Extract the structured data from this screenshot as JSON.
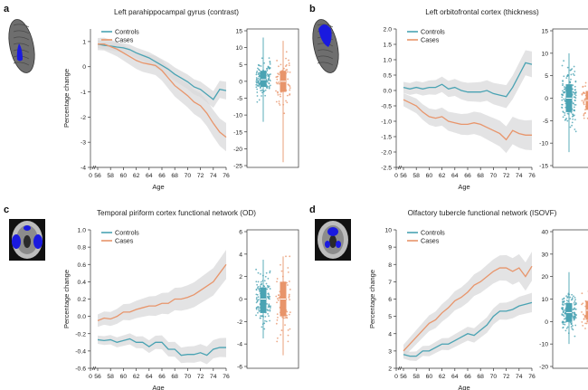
{
  "colors": {
    "controls": "#4aa3b3",
    "cases": "#e8956b",
    "band": "#d9dadb",
    "brain_highlight": "#1a1adf"
  },
  "chart_data": [
    {
      "type": "line",
      "panel": "a",
      "title": "Left parahippocampal gyrus (contrast)",
      "xlabel": "Age",
      "ylabel": "Percentage change",
      "x": [
        56,
        57,
        58,
        59,
        60,
        61,
        62,
        63,
        64,
        65,
        66,
        67,
        68,
        69,
        70,
        71,
        72,
        73,
        74,
        75,
        76
      ],
      "xticks": [
        "0",
        "56",
        "58",
        "60",
        "62",
        "64",
        "66",
        "68",
        "70",
        "72",
        "74",
        "76"
      ],
      "ylim": [
        -4,
        1.5
      ],
      "yticks": [
        -4,
        -3,
        -2,
        -1,
        0,
        1
      ],
      "legend": [
        "Controls",
        "Cases"
      ],
      "series": [
        {
          "name": "Controls",
          "values": [
            0.9,
            0.85,
            0.82,
            0.78,
            0.75,
            0.68,
            0.55,
            0.45,
            0.35,
            0.2,
            0.05,
            -0.1,
            -0.3,
            -0.45,
            -0.6,
            -0.8,
            -0.9,
            -1.1,
            -1.3,
            -0.9,
            -0.95
          ],
          "band": 0.25
        },
        {
          "name": "Cases",
          "values": [
            0.9,
            0.9,
            0.8,
            0.7,
            0.55,
            0.4,
            0.25,
            0.15,
            0.1,
            0.05,
            -0.15,
            -0.45,
            -0.75,
            -0.95,
            -1.15,
            -1.4,
            -1.55,
            -1.85,
            -2.25,
            -2.6,
            -2.8
          ],
          "band": 0.4
        }
      ],
      "strip": {
        "ylim": [
          -25,
          15
        ],
        "yticks": [
          -25,
          -20,
          -15,
          -10,
          -5,
          0,
          5,
          10,
          15
        ],
        "controls": {
          "median": 0.5,
          "q1": -1.5,
          "q3": 3,
          "min": -12,
          "max": 13
        },
        "cases": {
          "median": 0,
          "q1": -3,
          "q3": 3,
          "min": -24,
          "max": 12
        }
      }
    },
    {
      "type": "line",
      "panel": "b",
      "title": "Left orbitofrontal cortex (thickness)",
      "xlabel": "Age",
      "ylabel": "",
      "x": [
        56,
        57,
        58,
        59,
        60,
        61,
        62,
        63,
        64,
        65,
        66,
        67,
        68,
        69,
        70,
        71,
        72,
        73,
        74,
        75,
        76
      ],
      "xticks": [
        "0",
        "56",
        "58",
        "60",
        "62",
        "64",
        "66",
        "68",
        "70",
        "72",
        "74",
        "76"
      ],
      "ylim": [
        -2.5,
        2.0
      ],
      "yticks": [
        -2.5,
        -2.0,
        -1.5,
        -1.0,
        -0.5,
        0,
        0.5,
        1.0,
        1.5,
        2.0
      ],
      "legend": [
        "Controls",
        "Cases"
      ],
      "series": [
        {
          "name": "Controls",
          "values": [
            0.1,
            0.05,
            0.1,
            0.05,
            0.1,
            0.1,
            0.2,
            0.05,
            0.1,
            0.0,
            -0.05,
            -0.05,
            -0.05,
            0.0,
            -0.1,
            -0.15,
            -0.2,
            0.1,
            0.5,
            0.9,
            0.85
          ],
          "band": 0.3
        },
        {
          "name": "Cases",
          "values": [
            -0.3,
            -0.4,
            -0.5,
            -0.7,
            -0.85,
            -0.9,
            -0.85,
            -1.0,
            -1.05,
            -1.1,
            -1.1,
            -1.05,
            -1.1,
            -1.2,
            -1.3,
            -1.4,
            -1.6,
            -1.3,
            -1.4,
            -1.45,
            -1.45
          ],
          "band": 0.35
        }
      ],
      "strip": {
        "ylim": [
          -15,
          15
        ],
        "yticks": [
          -15,
          -10,
          -5,
          0,
          5,
          10,
          15
        ],
        "controls": {
          "median": 0,
          "q1": -3,
          "q3": 3,
          "min": -12,
          "max": 10
        },
        "cases": {
          "median": -0.5,
          "q1": -2.5,
          "q3": 1.5,
          "min": -11,
          "max": 8
        }
      }
    },
    {
      "type": "line",
      "panel": "c",
      "title": "Temporal piriform cortex functional network (OD)",
      "xlabel": "Age",
      "ylabel": "Percentage change",
      "x": [
        56,
        57,
        58,
        59,
        60,
        61,
        62,
        63,
        64,
        65,
        66,
        67,
        68,
        69,
        70,
        71,
        72,
        73,
        74,
        75,
        76
      ],
      "xticks": [
        "0",
        "56",
        "58",
        "60",
        "62",
        "64",
        "66",
        "68",
        "70",
        "72",
        "74",
        "76"
      ],
      "ylim": [
        -0.6,
        1.0
      ],
      "yticks": [
        -0.6,
        -0.4,
        -0.2,
        0,
        0.2,
        0.4,
        0.6,
        0.8,
        1.0
      ],
      "legend": [
        "Controls",
        "Cases"
      ],
      "series": [
        {
          "name": "Controls",
          "values": [
            -0.27,
            -0.28,
            -0.27,
            -0.3,
            -0.28,
            -0.26,
            -0.3,
            -0.3,
            -0.35,
            -0.3,
            -0.3,
            -0.38,
            -0.38,
            -0.45,
            -0.44,
            -0.44,
            -0.42,
            -0.45,
            -0.38,
            -0.36,
            -0.36
          ],
          "band": 0.08
        },
        {
          "name": "Cases",
          "values": [
            -0.05,
            -0.02,
            -0.03,
            0.0,
            0.05,
            0.05,
            0.08,
            0.1,
            0.12,
            0.12,
            0.15,
            0.15,
            0.2,
            0.2,
            0.22,
            0.25,
            0.3,
            0.35,
            0.4,
            0.5,
            0.6
          ],
          "band": 0.12
        }
      ],
      "strip": {
        "ylim": [
          -6,
          6
        ],
        "yticks": [
          -6,
          -4,
          -2,
          0,
          2,
          4,
          6
        ],
        "controls": {
          "median": 0,
          "q1": -1.2,
          "q3": 1,
          "min": -3.5,
          "max": 3.5
        },
        "cases": {
          "median": 0,
          "q1": -1.5,
          "q3": 1.5,
          "min": -5,
          "max": 3.8
        }
      }
    },
    {
      "type": "line",
      "panel": "d",
      "title": "Olfactory tubercle functional network (ISOVF)",
      "xlabel": "Age",
      "ylabel": "Percentage change",
      "x": [
        56,
        57,
        58,
        59,
        60,
        61,
        62,
        63,
        64,
        65,
        66,
        67,
        68,
        69,
        70,
        71,
        72,
        73,
        74,
        75,
        76
      ],
      "xticks": [
        "0",
        "56",
        "58",
        "60",
        "62",
        "64",
        "66",
        "68",
        "70",
        "72",
        "74",
        "76"
      ],
      "ylim": [
        2,
        10
      ],
      "yticks": [
        2,
        3,
        4,
        5,
        6,
        7,
        8,
        9,
        10
      ],
      "legend": [
        "Controls",
        "Cases"
      ],
      "series": [
        {
          "name": "Controls",
          "values": [
            2.8,
            2.7,
            2.7,
            3.0,
            3.0,
            3.2,
            3.4,
            3.4,
            3.6,
            3.8,
            4.0,
            3.9,
            4.2,
            4.5,
            5.0,
            5.3,
            5.3,
            5.4,
            5.6,
            5.7,
            5.8
          ],
          "band": 0.4
        },
        {
          "name": "Cases",
          "values": [
            3.0,
            3.4,
            3.8,
            4.2,
            4.6,
            4.8,
            5.2,
            5.5,
            5.9,
            6.1,
            6.4,
            6.8,
            7.0,
            7.3,
            7.6,
            7.8,
            7.8,
            7.6,
            7.8,
            7.3,
            7.9
          ],
          "band": 0.6
        }
      ],
      "strip": {
        "ylim": [
          -20,
          40
        ],
        "yticks": [
          -20,
          -10,
          0,
          10,
          20,
          30,
          40
        ],
        "controls": {
          "median": 4,
          "q1": 0,
          "q3": 8,
          "min": -10,
          "max": 22
        },
        "cases": {
          "median": 5,
          "q1": 1,
          "q3": 9,
          "min": -8,
          "max": 25
        }
      }
    }
  ]
}
